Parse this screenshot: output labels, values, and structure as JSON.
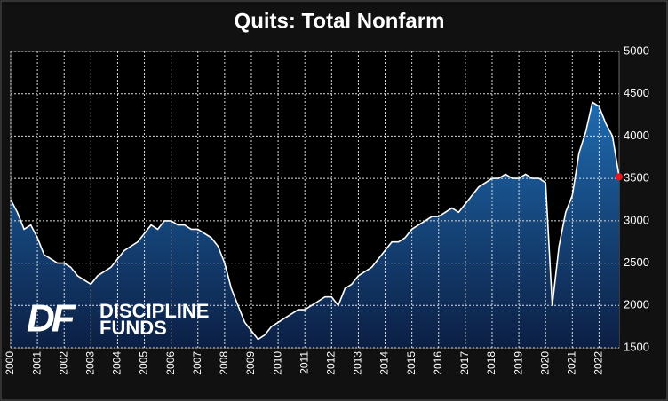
{
  "chart_data": {
    "type": "area",
    "title": "Quits: Total Nonfarm",
    "watermark": {
      "logo": "DF",
      "line1": "DISCIPLINE",
      "line2": "FUNDS"
    },
    "x": [
      2000,
      2000.25,
      2000.5,
      2000.75,
      2001,
      2001.25,
      2001.5,
      2001.75,
      2002,
      2002.25,
      2002.5,
      2002.75,
      2003,
      2003.25,
      2003.5,
      2003.75,
      2004,
      2004.25,
      2004.5,
      2004.75,
      2005,
      2005.25,
      2005.5,
      2005.75,
      2006,
      2006.25,
      2006.5,
      2006.75,
      2007,
      2007.25,
      2007.5,
      2007.75,
      2008,
      2008.25,
      2008.5,
      2008.75,
      2009,
      2009.25,
      2009.5,
      2009.75,
      2010,
      2010.25,
      2010.5,
      2010.75,
      2011,
      2011.25,
      2011.5,
      2011.75,
      2012,
      2012.25,
      2012.5,
      2012.75,
      2013,
      2013.25,
      2013.5,
      2013.75,
      2014,
      2014.25,
      2014.5,
      2014.75,
      2015,
      2015.25,
      2015.5,
      2015.75,
      2016,
      2016.25,
      2016.5,
      2016.75,
      2017,
      2017.25,
      2017.5,
      2017.75,
      2018,
      2018.25,
      2018.5,
      2018.75,
      2019,
      2019.25,
      2019.5,
      2019.75,
      2020,
      2020.25,
      2020.5,
      2020.75,
      2021,
      2021.25,
      2021.5,
      2021.75,
      2022,
      2022.25,
      2022.5,
      2022.75
    ],
    "series": [
      {
        "name": "Quits",
        "color": "#ffffff",
        "values": [
          3250,
          3100,
          2900,
          2950,
          2800,
          2600,
          2550,
          2500,
          2500,
          2450,
          2350,
          2300,
          2250,
          2350,
          2400,
          2450,
          2550,
          2650,
          2700,
          2750,
          2850,
          2950,
          2900,
          3000,
          3000,
          2950,
          2950,
          2900,
          2900,
          2850,
          2800,
          2700,
          2500,
          2200,
          2000,
          1800,
          1700,
          1600,
          1650,
          1750,
          1800,
          1850,
          1900,
          1950,
          1950,
          2000,
          2050,
          2100,
          2100,
          2000,
          2200,
          2250,
          2350,
          2400,
          2450,
          2550,
          2650,
          2750,
          2750,
          2800,
          2900,
          2950,
          3000,
          3050,
          3050,
          3100,
          3150,
          3100,
          3200,
          3300,
          3400,
          3450,
          3500,
          3500,
          3550,
          3500,
          3500,
          3550,
          3500,
          3500,
          3450,
          2000,
          2700,
          3100,
          3300,
          3800,
          4050,
          4400,
          4350,
          4150,
          4000,
          3520
        ]
      }
    ],
    "fill_top": "#1f6bb0",
    "fill_bottom": "#0c1f44",
    "last_point_color": "#e41a1c",
    "xlim": [
      2000,
      2022.75
    ],
    "ylim": [
      1500,
      5000
    ],
    "xticks": [
      2000,
      2001,
      2002,
      2003,
      2004,
      2005,
      2006,
      2007,
      2008,
      2009,
      2010,
      2011,
      2012,
      2013,
      2014,
      2015,
      2016,
      2017,
      2018,
      2019,
      2020,
      2021,
      2022
    ],
    "yticks": [
      1500,
      2000,
      2500,
      3000,
      3500,
      4000,
      4500,
      5000
    ],
    "grid": true
  }
}
